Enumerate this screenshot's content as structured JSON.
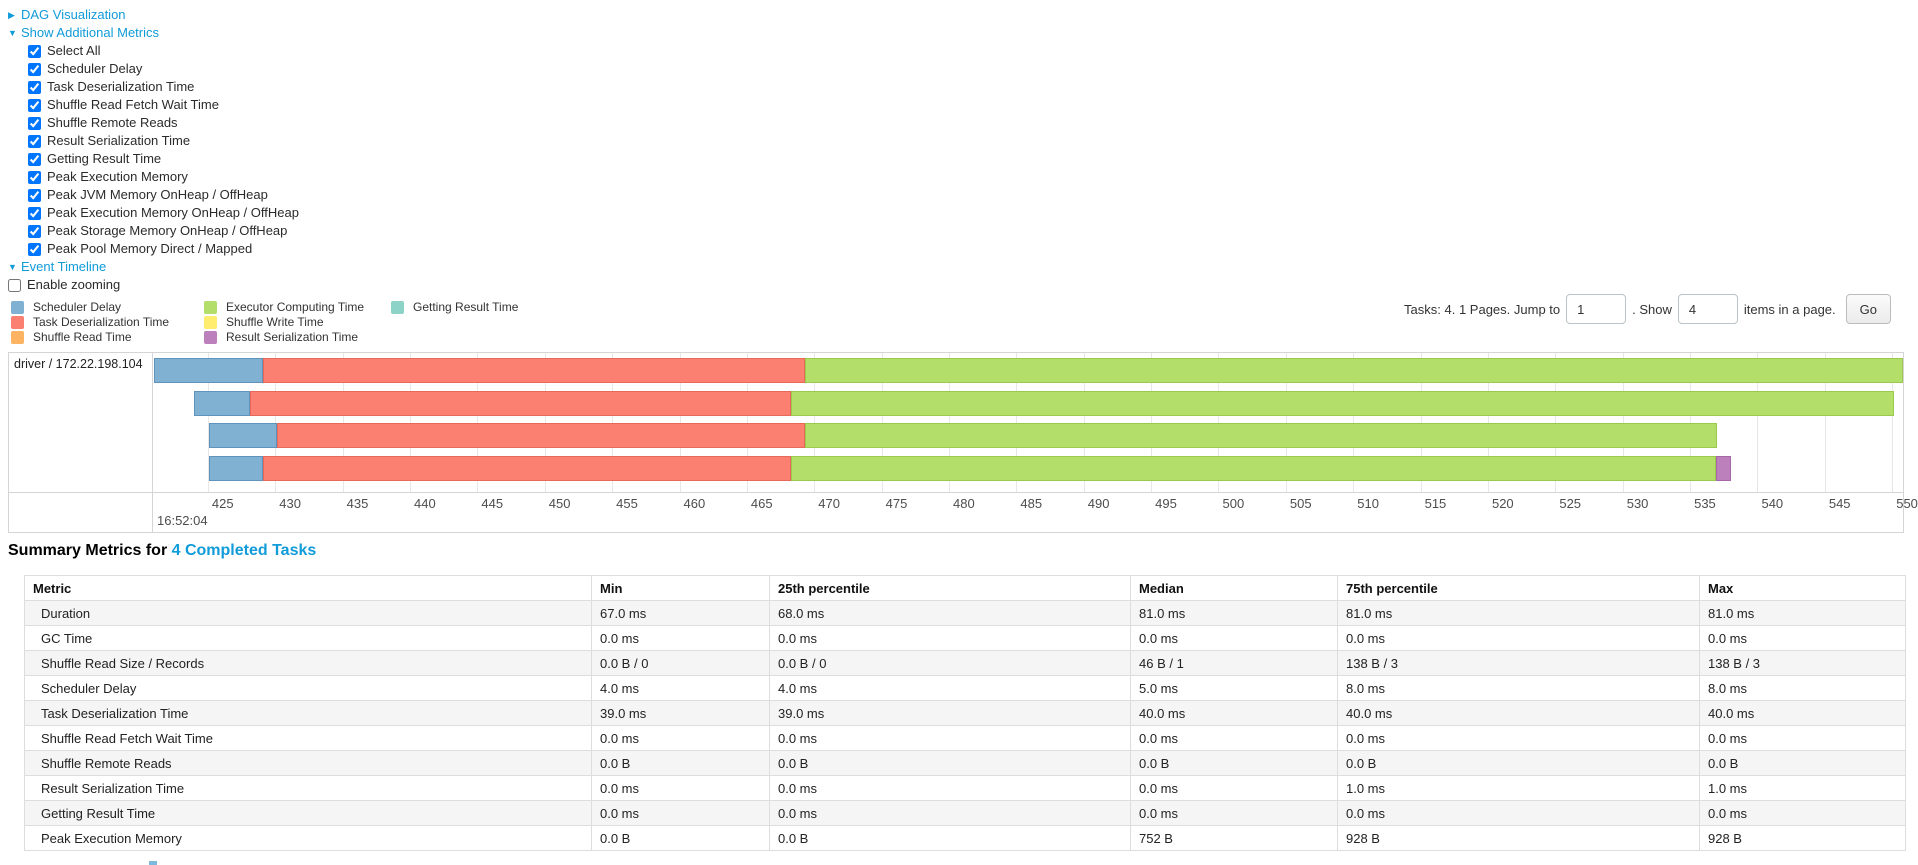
{
  "top": {
    "dag_label": "DAG Visualization",
    "metrics_label": "Show Additional Metrics",
    "metric_checkboxes": [
      "Select All",
      "Scheduler Delay",
      "Task Deserialization Time",
      "Shuffle Read Fetch Wait Time",
      "Shuffle Remote Reads",
      "Result Serialization Time",
      "Getting Result Time",
      "Peak Execution Memory",
      "Peak JVM Memory OnHeap / OffHeap",
      "Peak Execution Memory OnHeap / OffHeap",
      "Peak Storage Memory OnHeap / OffHeap",
      "Peak Pool Memory Direct / Mapped"
    ],
    "timeline_label": "Event Timeline",
    "enable_zooming_label": "Enable zooming",
    "link_color": "#109bd9"
  },
  "pagination": {
    "tasks_text": "Tasks: 4. 1 Pages. Jump to",
    "jump_value": "1",
    "show_text": ". Show",
    "show_value": "4",
    "items_text": "items in a page.",
    "go_label": "Go"
  },
  "legend": {
    "columns": [
      [
        {
          "label": "Scheduler Delay",
          "key": "scheduler_delay"
        },
        {
          "label": "Task Deserialization Time",
          "key": "task_deserialization"
        },
        {
          "label": "Shuffle Read Time",
          "key": "shuffle_read"
        }
      ],
      [
        {
          "label": "Executor Computing Time",
          "key": "executor_computing"
        },
        {
          "label": "Shuffle Write Time",
          "key": "shuffle_write"
        },
        {
          "label": "Result Serialization Time",
          "key": "result_serialization"
        }
      ],
      [
        {
          "label": "Getting Result Time",
          "key": "getting_result"
        }
      ]
    ]
  },
  "chart_data": {
    "type": "timeline",
    "group_label": "driver / 172.22.198.104",
    "axis": {
      "start": 421.0,
      "end": 550.8,
      "major_label": "16:52:04",
      "unit": "ms ticks within second 16:52:04"
    },
    "ticks": [
      425,
      430,
      435,
      440,
      445,
      450,
      455,
      460,
      465,
      470,
      475,
      480,
      485,
      490,
      495,
      500,
      505,
      510,
      515,
      520,
      525,
      530,
      535,
      540,
      545,
      550
    ],
    "colors": {
      "scheduler_delay": {
        "fill": "#80B1D3",
        "border": "#5e94bc"
      },
      "task_deserialization": {
        "fill": "#FB8072",
        "border": "#e8685a"
      },
      "shuffle_read": {
        "fill": "#FDB462",
        "border": "#e89a46"
      },
      "executor_computing": {
        "fill": "#B3DE69",
        "border": "#9bc94e"
      },
      "shuffle_write": {
        "fill": "#FFED6F",
        "border": "#e6d54f"
      },
      "result_serialization": {
        "fill": "#BC80BD",
        "border": "#a567a7"
      },
      "getting_result": {
        "fill": "#8DD3C7",
        "border": "#6fbcae"
      }
    },
    "tasks": [
      {
        "segments": [
          {
            "key": "scheduler_delay",
            "start": 421.0,
            "end": 429.1
          },
          {
            "key": "task_deserialization",
            "start": 429.1,
            "end": 469.3
          },
          {
            "key": "executor_computing",
            "start": 469.3,
            "end": 550.8
          }
        ]
      },
      {
        "segments": [
          {
            "key": "scheduler_delay",
            "start": 424.0,
            "end": 428.1
          },
          {
            "key": "task_deserialization",
            "start": 428.1,
            "end": 468.3
          },
          {
            "key": "executor_computing",
            "start": 468.3,
            "end": 550.1
          }
        ]
      },
      {
        "segments": [
          {
            "key": "scheduler_delay",
            "start": 425.1,
            "end": 430.1
          },
          {
            "key": "task_deserialization",
            "start": 430.1,
            "end": 469.3
          },
          {
            "key": "executor_computing",
            "start": 469.3,
            "end": 537.0
          }
        ]
      },
      {
        "segments": [
          {
            "key": "scheduler_delay",
            "start": 425.1,
            "end": 429.1
          },
          {
            "key": "task_deserialization",
            "start": 429.1,
            "end": 468.3
          },
          {
            "key": "executor_computing",
            "start": 468.3,
            "end": 536.9
          },
          {
            "key": "result_serialization",
            "start": 536.9,
            "end": 538.0
          }
        ]
      }
    ]
  },
  "summary": {
    "title_prefix": "Summary Metrics for",
    "title_link": "4 Completed Tasks",
    "columns": [
      "Metric",
      "Min",
      "25th percentile",
      "Median",
      "75th percentile",
      "Max"
    ],
    "rows": [
      {
        "metric": "Duration",
        "values": [
          "67.0 ms",
          "68.0 ms",
          "81.0 ms",
          "81.0 ms",
          "81.0 ms"
        ]
      },
      {
        "metric": "GC Time",
        "values": [
          "0.0 ms",
          "0.0 ms",
          "0.0 ms",
          "0.0 ms",
          "0.0 ms"
        ]
      },
      {
        "metric": "Shuffle Read Size / Records",
        "values": [
          "0.0 B / 0",
          "0.0 B / 0",
          "46 B / 1",
          "138 B / 3",
          "138 B / 3"
        ]
      },
      {
        "metric": "Scheduler Delay",
        "values": [
          "4.0 ms",
          "4.0 ms",
          "5.0 ms",
          "8.0 ms",
          "8.0 ms"
        ]
      },
      {
        "metric": "Task Deserialization Time",
        "values": [
          "39.0 ms",
          "39.0 ms",
          "40.0 ms",
          "40.0 ms",
          "40.0 ms"
        ]
      },
      {
        "metric": "Shuffle Read Fetch Wait Time",
        "values": [
          "0.0 ms",
          "0.0 ms",
          "0.0 ms",
          "0.0 ms",
          "0.0 ms"
        ]
      },
      {
        "metric": "Shuffle Remote Reads",
        "values": [
          "0.0 B",
          "0.0 B",
          "0.0 B",
          "0.0 B",
          "0.0 B"
        ]
      },
      {
        "metric": "Result Serialization Time",
        "values": [
          "0.0 ms",
          "0.0 ms",
          "0.0 ms",
          "1.0 ms",
          "1.0 ms"
        ]
      },
      {
        "metric": "Getting Result Time",
        "values": [
          "0.0 ms",
          "0.0 ms",
          "0.0 ms",
          "0.0 ms",
          "0.0 ms"
        ]
      },
      {
        "metric": "Peak Execution Memory",
        "values": [
          "0.0 B",
          "0.0 B",
          "752 B",
          "928 B",
          "928 B"
        ]
      }
    ]
  }
}
